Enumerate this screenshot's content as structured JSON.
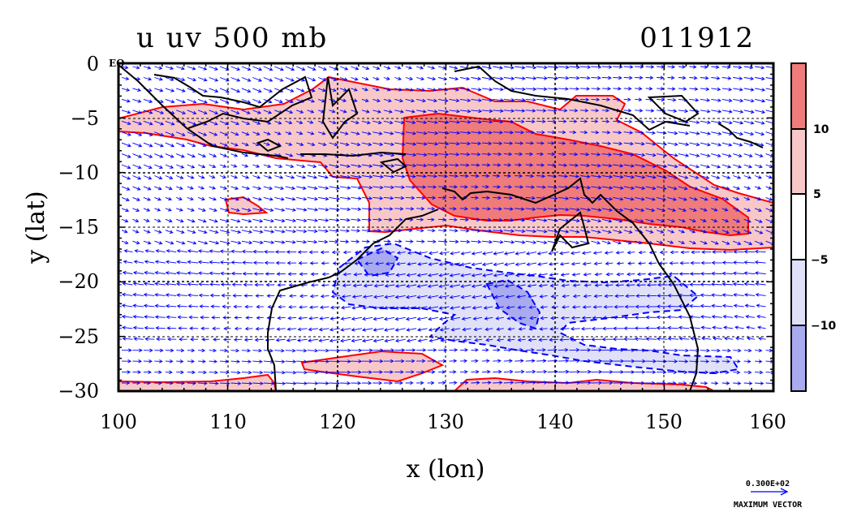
{
  "title": {
    "variable": "u uv 500 mb",
    "date": "011912"
  },
  "axes": {
    "x_label": "x (lon)",
    "y_label": "y (lat)",
    "x_ticks": [
      "100",
      "110",
      "120",
      "130",
      "140",
      "150",
      "160"
    ],
    "y_ticks": [
      "0",
      "−5",
      "−10",
      "−15",
      "−20",
      "−25",
      "−30"
    ],
    "equator_label": "EQ"
  },
  "map_data": {
    "type": "contour_vector_map",
    "lon_range": [
      100,
      160
    ],
    "lat_range": [
      -30,
      0
    ],
    "grid_lines_lon": [
      120,
      140
    ],
    "grid_lines_lat": [
      -10,
      -20
    ],
    "contour_levels": [
      -10,
      -5,
      5,
      10
    ],
    "contour_colors": {
      "positive_line": "#ff0000",
      "negative_line": "#0000ff",
      "coast": "#000000",
      "vector": "#0000ff"
    }
  },
  "colorbar": {
    "labels": [
      "10",
      "5",
      "−5",
      "−10"
    ],
    "colors": [
      "#ef7b7b",
      "#f8c8c8",
      "#ffffff",
      "#e0e0f8",
      "#a9aaef"
    ]
  },
  "reference_vector": {
    "value": "0.300E+02",
    "label": "MAXIMUM VECTOR"
  }
}
